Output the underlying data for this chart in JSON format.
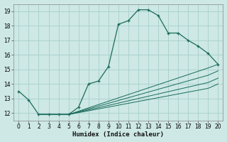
{
  "xlabel": "Humidex (Indice chaleur)",
  "xlim": [
    -0.5,
    20.5
  ],
  "ylim": [
    11.5,
    19.5
  ],
  "yticks": [
    12,
    13,
    14,
    15,
    16,
    17,
    18,
    19
  ],
  "xticks": [
    0,
    1,
    2,
    3,
    4,
    5,
    6,
    7,
    8,
    9,
    10,
    11,
    12,
    13,
    14,
    15,
    16,
    17,
    18,
    19,
    20
  ],
  "bg_color": "#cde8e5",
  "grid_color": "#a8d0cc",
  "line_color": "#1a6b5a",
  "line1": {
    "x": [
      0,
      1,
      2,
      3,
      4,
      5,
      6,
      7,
      8,
      9,
      10,
      11,
      12,
      13,
      14,
      15,
      16,
      17,
      18,
      19,
      20
    ],
    "y": [
      13.5,
      12.9,
      11.9,
      11.9,
      11.9,
      11.9,
      12.4,
      14.0,
      14.2,
      15.2,
      18.1,
      18.35,
      19.1,
      19.1,
      18.7,
      17.5,
      17.5,
      17.0,
      16.6,
      16.1,
      15.35
    ]
  },
  "line2": {
    "x": [
      2,
      5,
      19,
      20
    ],
    "y": [
      11.9,
      11.9,
      15.1,
      15.35
    ]
  },
  "line3": {
    "x": [
      2,
      5,
      19,
      20
    ],
    "y": [
      11.9,
      11.9,
      14.6,
      14.9
    ]
  },
  "line4": {
    "x": [
      2,
      5,
      19,
      20
    ],
    "y": [
      11.9,
      11.9,
      14.1,
      14.4
    ]
  },
  "line5": {
    "x": [
      2,
      5,
      19,
      20
    ],
    "y": [
      11.9,
      11.9,
      13.7,
      14.0
    ]
  }
}
